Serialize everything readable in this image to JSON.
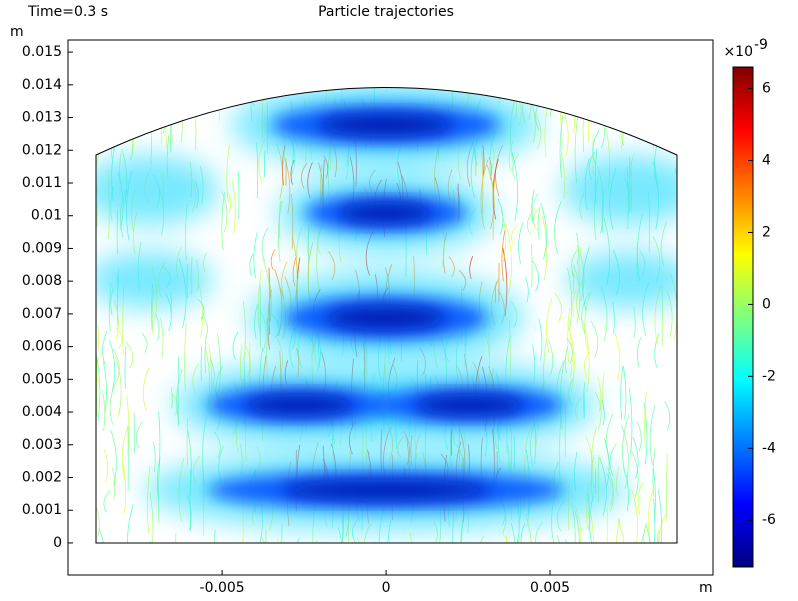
{
  "chart_data": {
    "type": "trajectory",
    "title": "Particle trajectories",
    "time_label": "Time=0.3 s",
    "x_unit": "m",
    "y_unit": "m",
    "xlim": [
      -0.0097,
      0.00997
    ],
    "xticks": [
      -0.005,
      0,
      0.005
    ],
    "ylim": [
      -0.00098,
      0.01537
    ],
    "yticks": [
      0,
      0.001,
      0.002,
      0.003,
      0.004,
      0.005,
      0.006,
      0.007,
      0.008,
      0.009,
      0.01,
      0.011,
      0.012,
      0.013,
      0.014,
      0.015
    ],
    "colorbar": {
      "exponent_base": "×10",
      "exponent": "-9",
      "lim": [
        -7.3,
        6.6
      ],
      "ticks": [
        -6,
        -4,
        -2,
        0,
        2,
        4,
        6
      ],
      "colormap": [
        "#00007f",
        "#0000ff",
        "#007fff",
        "#00ffff",
        "#7fff7f",
        "#ffff00",
        "#ff7f00",
        "#ff0000",
        "#7f0000"
      ]
    }
  }
}
